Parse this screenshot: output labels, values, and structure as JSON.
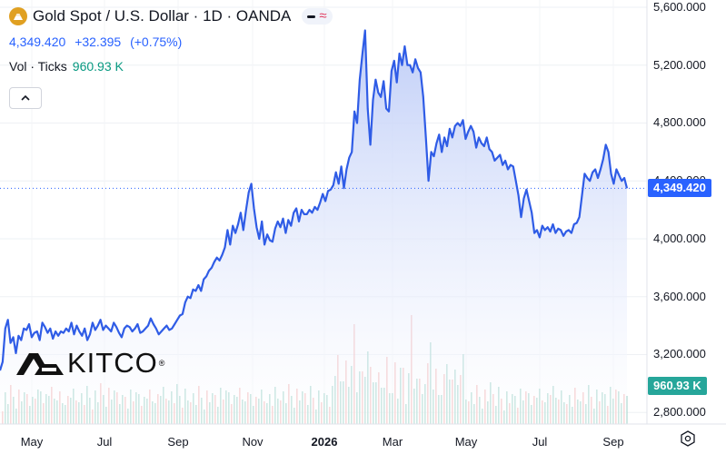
{
  "header": {
    "title": "Gold Spot / U.S. Dollar · 1D · OANDA",
    "symbol_icon": "gold-bars-icon",
    "status_icons": [
      "market-closed-dash-icon",
      "delayed-wave-icon"
    ]
  },
  "quote": {
    "last": "4,349.420",
    "change": "+32.395",
    "change_pct": "(+0.75%)"
  },
  "volume": {
    "label": "Vol · Ticks",
    "value": "960.93 K"
  },
  "price_tag": "4,349.420",
  "volume_tag": "960.93 K",
  "logo": "KITCO",
  "logo_mark": "®",
  "colors": {
    "line": "#2f5ce6",
    "area_top": "#bccbf7",
    "price_tag_bg": "#2962ff",
    "volume_tag_bg": "#26a69a",
    "vol_up": "#9fd3c9",
    "vol_down": "#f3b7b7"
  },
  "chart_data": {
    "type": "area",
    "title": "Gold Spot / U.S. Dollar · 1D · OANDA",
    "x_ticks": [
      "May",
      "Jul",
      "Sep",
      "Nov",
      "2026",
      "Mar",
      "May",
      "Jul",
      "Sep"
    ],
    "x_tick_bold": "2026",
    "y_ticks": [
      "2,800.000",
      "3,200.000",
      "3,600.000",
      "4,000.000",
      "4,400.000",
      "4,800.000",
      "5,200.000",
      "5,600.000"
    ],
    "ylim": [
      2720,
      5650
    ],
    "grid": true,
    "series": [
      {
        "values": [
          3090,
          3150,
          3380,
          3440,
          3280,
          3320,
          3210,
          3330,
          3300,
          3380,
          3370,
          3410,
          3320,
          3350,
          3360,
          3300,
          3420,
          3390,
          3350,
          3380,
          3310,
          3360,
          3330,
          3360,
          3350,
          3380,
          3360,
          3420,
          3340,
          3400,
          3360,
          3330,
          3380,
          3300,
          3340,
          3420,
          3370,
          3400,
          3440,
          3370,
          3400,
          3380,
          3360,
          3420,
          3390,
          3350,
          3320,
          3380,
          3400,
          3390,
          3360,
          3380,
          3410,
          3350,
          3360,
          3380,
          3400,
          3450,
          3410,
          3380,
          3340,
          3360,
          3380,
          3400,
          3370,
          3380,
          3410,
          3440,
          3470,
          3480,
          3560,
          3600,
          3590,
          3650,
          3640,
          3680,
          3640,
          3720,
          3740,
          3780,
          3800,
          3840,
          3870,
          3850,
          3890,
          3940,
          4060,
          3960,
          4090,
          4040,
          4100,
          4180,
          4060,
          4200,
          4320,
          4380,
          4210,
          4080,
          4000,
          4120,
          3960,
          4030,
          3990,
          3980,
          4070,
          4120,
          4080,
          4140,
          4040,
          4130,
          4090,
          4180,
          4210,
          4120,
          4200,
          4170,
          4170,
          4200,
          4180,
          4220,
          4200,
          4250,
          4310,
          4260,
          4330,
          4340,
          4370,
          4460,
          4380,
          4500,
          4350,
          4480,
          4560,
          4600,
          4880,
          4800,
          5100,
          5280,
          5440,
          4900,
          4650,
          4960,
          5100,
          5010,
          4980,
          5090,
          4900,
          4880,
          5160,
          5230,
          5080,
          5280,
          5200,
          5330,
          5200,
          5200,
          5150,
          5240,
          5180,
          5150,
          4980,
          4700,
          4400,
          4600,
          4570,
          4660,
          4720,
          4600,
          4700,
          4640,
          4760,
          4700,
          4780,
          4800,
          4780,
          4820,
          4690,
          4740,
          4780,
          4740,
          4630,
          4700,
          4660,
          4640,
          4700,
          4620,
          4600,
          4540,
          4560,
          4580,
          4510,
          4540,
          4480,
          4510,
          4500,
          4400,
          4300,
          4150,
          4280,
          4340,
          4260,
          4180,
          4040,
          4060,
          4010,
          4090,
          4060,
          4080,
          4050,
          4100,
          4040,
          4070,
          4060,
          4020,
          4050,
          4060,
          4040,
          4100,
          4110,
          4150,
          4300,
          4450,
          4420,
          4400,
          4460,
          4480,
          4420,
          4480,
          4550,
          4650,
          4600,
          4450,
          4380,
          4480,
          4440,
          4400,
          4420,
          4349
        ]
      }
    ]
  },
  "settings_icon": "settings-gear-icon",
  "collapse_icon": "chevron-up-icon"
}
